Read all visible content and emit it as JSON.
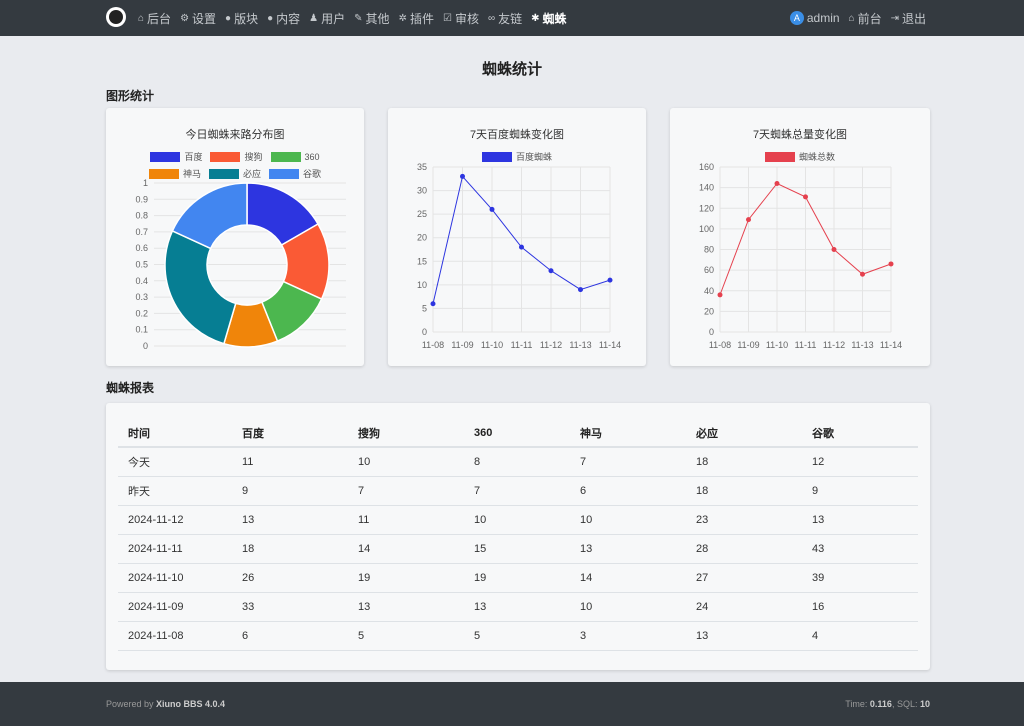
{
  "nav": {
    "left": [
      {
        "icon": "home-icon",
        "glyph": "⌂",
        "label": "后台"
      },
      {
        "icon": "gear-icon",
        "glyph": "⚙",
        "label": "设置"
      },
      {
        "icon": "comment-icon",
        "glyph": "●",
        "label": "版块"
      },
      {
        "icon": "comment-icon",
        "glyph": "●",
        "label": "内容"
      },
      {
        "icon": "user-icon",
        "glyph": "♟",
        "label": "用户"
      },
      {
        "icon": "wrench-icon",
        "glyph": "✎",
        "label": "其他"
      },
      {
        "icon": "cogs-icon",
        "glyph": "✲",
        "label": "插件"
      },
      {
        "icon": "check-square-icon",
        "glyph": "☑",
        "label": "审核"
      },
      {
        "icon": "link-icon",
        "glyph": "∞",
        "label": "友链"
      },
      {
        "icon": "spider-icon",
        "glyph": "✱",
        "label": "蜘蛛"
      }
    ],
    "right": [
      {
        "icon": "avatar-icon",
        "glyph": "A",
        "label": "admin"
      },
      {
        "icon": "home-icon",
        "glyph": "⌂",
        "label": "前台"
      },
      {
        "icon": "sign-out-icon",
        "glyph": "⇥",
        "label": "退出"
      }
    ]
  },
  "page_title": "蜘蛛统计",
  "graph_section_title": "图形统计",
  "report_section_title": "蜘蛛报表",
  "colors": {
    "baidu": "#2d35e0",
    "sogou": "#fa5a35",
    "s360": "#4cb74f",
    "shenma": "#f0850a",
    "bing": "#067e93",
    "google": "#4286f0",
    "line_baidu": "#2d35e0",
    "line_total": "#e5414e"
  },
  "chart_data": [
    {
      "type": "pie",
      "title": "今日蜘蛛来路分布图",
      "categories": [
        "百度",
        "搜狗",
        "360",
        "神马",
        "必应",
        "谷歌"
      ],
      "values": [
        11,
        10,
        8,
        7,
        18,
        12
      ],
      "yticks": [
        "1",
        "0.9",
        "0.8",
        "0.7",
        "0.6",
        "0.5",
        "0.4",
        "0.3",
        "0.2",
        "0.1",
        "0"
      ]
    },
    {
      "type": "line",
      "title": "7天百度蜘蛛变化图",
      "series": [
        {
          "name": "百度蜘蛛",
          "values": [
            6,
            33,
            26,
            18,
            13,
            9,
            11
          ]
        }
      ],
      "categories": [
        "11-08",
        "11-09",
        "11-10",
        "11-11",
        "11-12",
        "11-13",
        "11-14"
      ],
      "ylim": [
        0,
        35
      ],
      "yticks": [
        0,
        5,
        10,
        15,
        20,
        25,
        30,
        35
      ]
    },
    {
      "type": "line",
      "title": "7天蜘蛛总量变化图",
      "series": [
        {
          "name": "蜘蛛总数",
          "values": [
            36,
            109,
            144,
            131,
            80,
            56,
            66
          ]
        }
      ],
      "categories": [
        "11-08",
        "11-09",
        "11-10",
        "11-11",
        "11-12",
        "11-13",
        "11-14"
      ],
      "ylim": [
        0,
        160
      ],
      "yticks": [
        0,
        20,
        40,
        60,
        80,
        100,
        120,
        140,
        160
      ]
    }
  ],
  "table": {
    "headers": [
      "时间",
      "百度",
      "搜狗",
      "360",
      "神马",
      "必应",
      "谷歌"
    ],
    "rows": [
      [
        "今天",
        "11",
        "10",
        "8",
        "7",
        "18",
        "12"
      ],
      [
        "昨天",
        "9",
        "7",
        "7",
        "6",
        "18",
        "9"
      ],
      [
        "2024-11-12",
        "13",
        "11",
        "10",
        "10",
        "23",
        "13"
      ],
      [
        "2024-11-11",
        "18",
        "14",
        "15",
        "13",
        "28",
        "43"
      ],
      [
        "2024-11-10",
        "26",
        "19",
        "19",
        "14",
        "27",
        "39"
      ],
      [
        "2024-11-09",
        "33",
        "13",
        "13",
        "10",
        "24",
        "16"
      ],
      [
        "2024-11-08",
        "6",
        "5",
        "5",
        "3",
        "13",
        "4"
      ]
    ]
  },
  "footer": {
    "powered_prefix": "Powered by",
    "powered_name": "Xiuno BBS 4.0.4",
    "time_label": "Time:",
    "time_value": "0.116",
    "sql_label": "SQL:",
    "sql_value": "10"
  }
}
